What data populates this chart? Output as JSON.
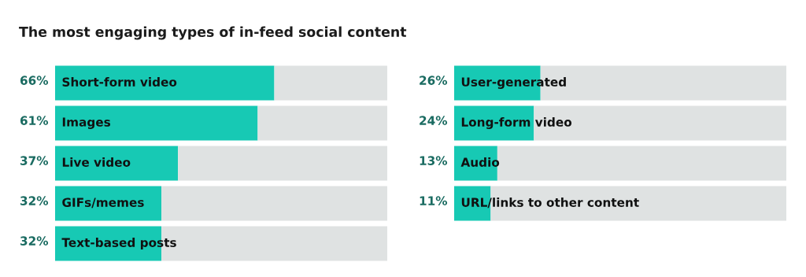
{
  "chart_data": [
    {
      "type": "bar",
      "orientation": "horizontal",
      "stacked": true,
      "title": "The most engaging types of in-feed social content",
      "categories": [
        "Short-form video",
        "Images",
        "Live video",
        "GIFs/memes",
        "Text-based posts"
      ],
      "xlim": [
        0,
        100
      ],
      "series": [
        {
          "color": "#17c9b4",
          "values": [
            66,
            61,
            37,
            32,
            32
          ],
          "value_labels": [
            "66%",
            "61%",
            "37%",
            "32%",
            "32%"
          ]
        },
        {
          "color": "#dfe2e2",
          "values": [
            34,
            39,
            63,
            68,
            68
          ]
        }
      ]
    },
    {
      "type": "bar",
      "orientation": "horizontal",
      "stacked": true,
      "categories": [
        "User-generated",
        "Long-form video",
        "Audio",
        "URL/links to other content"
      ],
      "xlim": [
        0,
        100
      ],
      "series": [
        {
          "color": "#17c9b4",
          "values": [
            26,
            24,
            13,
            11
          ],
          "value_labels": [
            "26%",
            "24%",
            "13%",
            "11%"
          ]
        },
        {
          "color": "#dfe2e2",
          "values": [
            74,
            76,
            87,
            89
          ]
        }
      ]
    }
  ]
}
